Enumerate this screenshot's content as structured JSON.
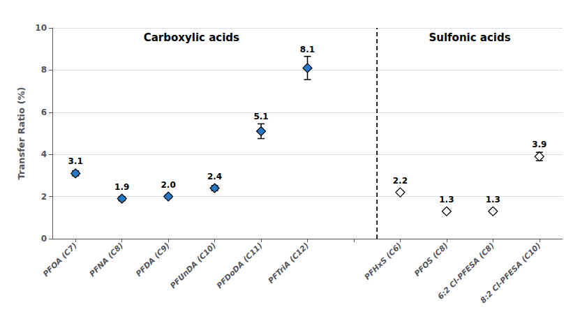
{
  "chart_data": {
    "type": "scatter",
    "ylabel": "Transfer Ratio (%)",
    "categories": [
      "PFOA (C7)",
      "PFNA (C8)",
      "PFDA (C9)",
      "PFUnDA (C10)",
      "PFDoDA (C11)",
      "PFTriA (C12)",
      null,
      "PFHxS (C6)",
      "PFOS (C8)",
      "6:2 Cl-PFESA (C8)",
      "8:2 Cl-PFESA (C10)"
    ],
    "series": [
      {
        "color": "#2878c8",
        "marker": "diamond",
        "values": [
          3.1,
          1.9,
          2.0,
          2.4,
          5.1,
          8.1,
          null,
          null,
          null,
          null,
          null
        ],
        "value_labels": [
          "3.1",
          "1.9",
          "2.0",
          "2.4",
          "5.1",
          "8.1",
          null,
          null,
          null,
          null,
          null
        ],
        "errors": [
          0.12,
          0.1,
          0.08,
          0.12,
          0.35,
          0.55,
          null,
          null,
          null,
          null,
          null
        ]
      },
      {
        "color": "#ffffff",
        "marker": "diamond",
        "values": [
          null,
          null,
          null,
          null,
          null,
          null,
          null,
          2.2,
          1.3,
          1.3,
          3.9
        ],
        "value_labels": [
          null,
          null,
          null,
          null,
          null,
          null,
          null,
          "2.2",
          "1.3",
          "1.3",
          "3.9"
        ],
        "errors": [
          null,
          null,
          null,
          null,
          null,
          null,
          null,
          0.07,
          0.07,
          0.07,
          0.2
        ]
      }
    ],
    "annotations": [
      {
        "text": "Carboxylic acids"
      },
      {
        "text": "Sulfonic acids"
      }
    ],
    "ylim": [
      0,
      10
    ],
    "yticks": [
      0,
      2,
      4,
      6,
      8,
      10
    ],
    "grid": true,
    "data_labels": true
  }
}
